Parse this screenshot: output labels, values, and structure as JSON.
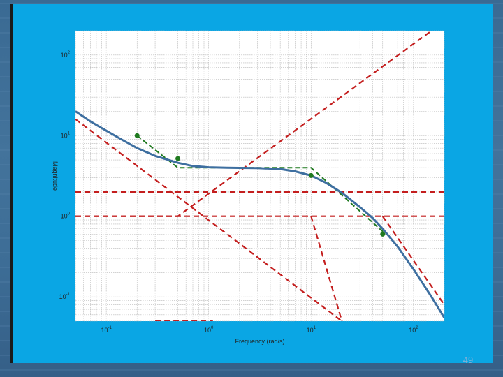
{
  "page": {
    "number": "49"
  },
  "chart_data": {
    "type": "line",
    "title": "",
    "xlabel": "Frequency (rad/s)",
    "ylabel": "Magnitude",
    "xscale": "log",
    "yscale": "log",
    "xlim": [
      0.05,
      200
    ],
    "ylim": [
      0.05,
      200
    ],
    "grid": true,
    "x_ticks": [
      {
        "value": 0.1,
        "base": "10",
        "exp": "-1"
      },
      {
        "value": 1,
        "base": "10",
        "exp": "0"
      },
      {
        "value": 10,
        "base": "10",
        "exp": "1"
      },
      {
        "value": 100,
        "base": "10",
        "exp": "2"
      }
    ],
    "y_ticks": [
      {
        "value": 0.1,
        "base": "10",
        "exp": "-1"
      },
      {
        "value": 1,
        "base": "10",
        "exp": "0"
      },
      {
        "value": 10,
        "base": "10",
        "exp": "1"
      },
      {
        "value": 100,
        "base": "10",
        "exp": "2"
      }
    ],
    "colors": {
      "magnitude": "#3e6fa0",
      "asymptote": "#c41e1e",
      "composite": "#1f7a1f",
      "dots": "#1f7a1f",
      "plot_bg": "#ffffff",
      "grid": "#b8b8b8"
    },
    "series": [
      {
        "role": "magnitude",
        "x": [
          0.05,
          0.07,
          0.1,
          0.14,
          0.2,
          0.3,
          0.5,
          0.7,
          1,
          1.5,
          2,
          3,
          5,
          7,
          10,
          14,
          20,
          30,
          40,
          50,
          70,
          100,
          150,
          200
        ],
        "y": [
          20,
          15,
          11.5,
          9,
          7,
          5.6,
          4.6,
          4.2,
          4.05,
          4.0,
          3.98,
          3.95,
          3.85,
          3.6,
          3.2,
          2.6,
          1.95,
          1.3,
          0.95,
          0.7,
          0.42,
          0.22,
          0.1,
          0.055
        ]
      },
      {
        "role": "asymptote",
        "x": [
          0.05,
          0.5,
          150
        ],
        "y": [
          1,
          1,
          200
        ]
      },
      {
        "role": "asymptote",
        "x": [
          0.05,
          200
        ],
        "y": [
          2,
          2
        ]
      },
      {
        "role": "asymptote",
        "x": [
          0.05,
          200
        ],
        "y": [
          1,
          1
        ]
      },
      {
        "role": "asymptote",
        "x": [
          0.05,
          20
        ],
        "y": [
          16,
          0.05
        ]
      },
      {
        "role": "asymptote",
        "x": [
          0.3,
          1.1
        ],
        "y": [
          0.05,
          0.05
        ]
      },
      {
        "role": "asymptote",
        "x": [
          10,
          20
        ],
        "y": [
          1,
          0.05
        ]
      },
      {
        "role": "asymptote",
        "x": [
          50,
          200
        ],
        "y": [
          1,
          0.08
        ]
      },
      {
        "role": "composite",
        "x": [
          0.2,
          0.5,
          10,
          50,
          60
        ],
        "y": [
          10,
          4,
          4,
          0.65,
          0.55
        ]
      }
    ],
    "dots": {
      "x": [
        0.2,
        0.5,
        10,
        50
      ],
      "y": [
        10,
        5.2,
        3.2,
        0.6
      ]
    }
  }
}
